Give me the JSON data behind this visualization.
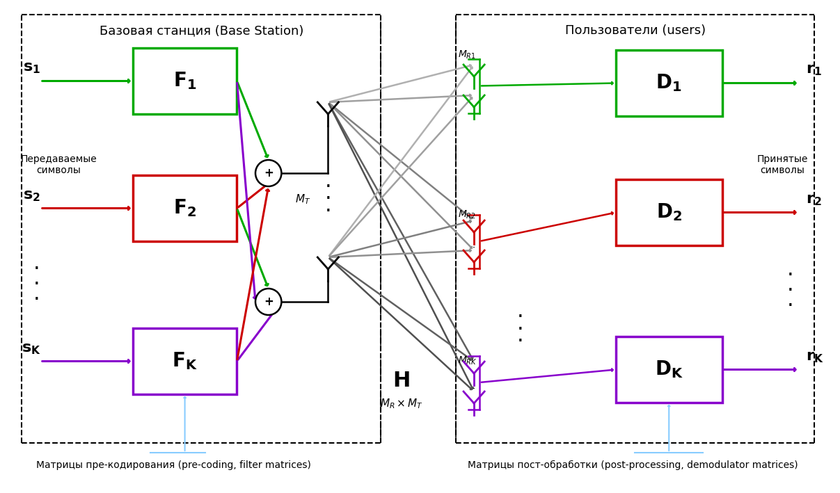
{
  "bg_color": "#ffffff",
  "green_color": "#00aa00",
  "red_color": "#cc0000",
  "purple_color": "#8800cc",
  "light_blue": "#88ccff",
  "title_bs": "Базовая станция (Base Station)",
  "title_users": "Пользователи (users)",
  "label_tx": "Передаваемые\nсимволы",
  "label_rx": "Принятые\nсимволы",
  "label_precoding": "Матрицы пре-кодирования (pre-coding, filter matrices)",
  "label_postproc": "Матрицы пост-обработки (post-processing, demodulator matrices)"
}
